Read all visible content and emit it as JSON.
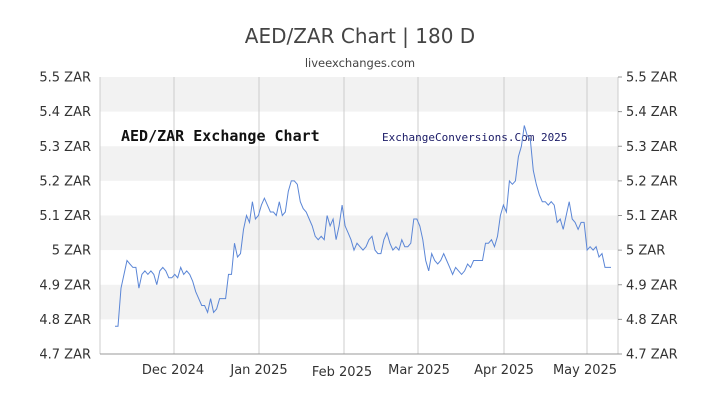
{
  "header": {
    "title": "AED/ZAR Chart | 180 D",
    "subtitle": "liveexchanges.com"
  },
  "chart_data": {
    "type": "line",
    "title": "AED/ZAR Exchange Chart",
    "watermark": "ExchangeConversions.Com 2025",
    "x_tick_labels": [
      "Dec 2024",
      "Jan 2025",
      "Feb 2025",
      "Mar 2025",
      "Apr 2025",
      "May 2025"
    ],
    "y_tick_values": [
      4.7,
      4.8,
      4.9,
      5.0,
      5.1,
      5.2,
      5.3,
      5.4,
      5.5
    ],
    "y_tick_labels": [
      "4.7 ZAR",
      "4.8 ZAR",
      "4.9 ZAR",
      "5 ZAR",
      "5.1 ZAR",
      "5.2 ZAR",
      "5.3 ZAR",
      "5.4 ZAR",
      "5.5 ZAR"
    ],
    "ylim": [
      4.7,
      5.5
    ],
    "grid": true,
    "line_color": "#5b86d6",
    "band_color": "#f2f2f2",
    "series": [
      {
        "values": [
          4.78,
          4.78,
          4.89,
          4.93,
          4.97,
          4.96,
          4.95,
          4.95,
          4.89,
          4.93,
          4.94,
          4.93,
          4.94,
          4.93,
          4.9,
          4.94,
          4.95,
          4.94,
          4.92,
          4.92,
          4.93,
          4.92,
          4.95,
          4.93,
          4.94,
          4.93,
          4.91,
          4.88,
          4.86,
          4.84,
          4.84,
          4.82,
          4.86,
          4.82,
          4.83,
          4.86,
          4.86,
          4.86,
          4.93,
          4.93,
          5.02,
          4.98,
          4.99,
          5.06,
          5.1,
          5.08,
          5.14,
          5.09,
          5.1,
          5.13,
          5.15,
          5.13,
          5.11,
          5.11,
          5.1,
          5.14,
          5.1,
          5.11,
          5.17,
          5.2,
          5.2,
          5.19,
          5.14,
          5.12,
          5.11,
          5.09,
          5.07,
          5.04,
          5.03,
          5.04,
          5.03,
          5.1,
          5.07,
          5.09,
          5.03,
          5.07,
          5.13,
          5.07,
          5.05,
          5.03,
          5.0,
          5.02,
          5.01,
          5.0,
          5.01,
          5.03,
          5.04,
          5.0,
          4.99,
          4.99,
          5.03,
          5.05,
          5.02,
          5.0,
          5.01,
          5.0,
          5.03,
          5.01,
          5.01,
          5.02,
          5.09,
          5.09,
          5.07,
          5.03,
          4.97,
          4.94,
          4.99,
          4.97,
          4.96,
          4.97,
          4.99,
          4.97,
          4.95,
          4.93,
          4.95,
          4.94,
          4.93,
          4.94,
          4.96,
          4.95,
          4.97,
          4.97,
          4.97,
          4.97,
          5.02,
          5.02,
          5.03,
          5.01,
          5.04,
          5.1,
          5.13,
          5.11,
          5.2,
          5.19,
          5.2,
          5.27,
          5.3,
          5.36,
          5.33,
          5.32,
          5.23,
          5.19,
          5.16,
          5.14,
          5.14,
          5.13,
          5.14,
          5.13,
          5.08,
          5.09,
          5.06,
          5.1,
          5.14,
          5.09,
          5.08,
          5.06,
          5.08,
          5.08,
          5.0,
          5.01,
          5.0,
          5.01,
          4.98,
          4.99,
          4.95,
          4.95,
          4.95
        ]
      }
    ]
  }
}
